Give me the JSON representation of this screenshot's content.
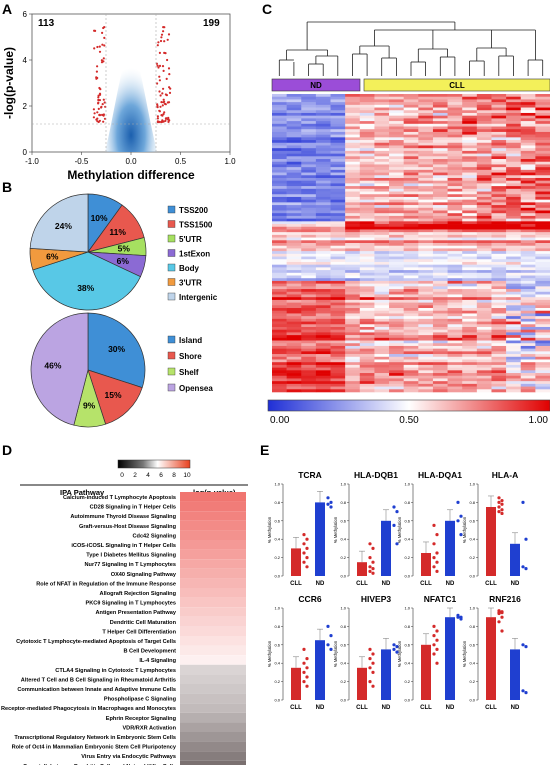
{
  "panel_labels": {
    "a": "A",
    "b": "B",
    "c": "C",
    "d": "D",
    "e": "E"
  },
  "colors": {
    "red": "#d42a2a",
    "blue": "#1f3fd0",
    "nd_bar": "#9b4dd8",
    "cll_bar": "#f3f05a",
    "pie_tss200": "#3f8fd6",
    "pie_tss1500": "#e8584e",
    "pie_5utr": "#a6e060",
    "pie_1stexon": "#8b6ad4",
    "pie_body": "#58c8e6",
    "pie_3utr": "#f19a3e",
    "pie_intergenic": "#bfd4ea",
    "pie_island": "#3f8fd6",
    "pie_shore": "#e8584e",
    "pie_shelf": "#b6e36a",
    "pie_opensea": "#bba4e2"
  },
  "chart_data": [
    {
      "panel": "A",
      "type": "scatter",
      "xlabel": "Methylation  difference",
      "ylabel": "-log(p-value)",
      "xlim": [
        -1.0,
        1.0
      ],
      "ylim": [
        0,
        6
      ],
      "xticks": [
        "-1.0",
        "-0.5",
        "0.0",
        "0.5",
        "1.0"
      ],
      "yticks": [
        "0",
        "2",
        "4",
        "6"
      ],
      "threshold_x": [
        -0.25,
        0.25
      ],
      "threshold_y": 1.3,
      "annotations": [
        {
          "text": "113",
          "position": "top-left"
        },
        {
          "text": "199",
          "position": "top-right"
        }
      ]
    },
    {
      "panel": "B",
      "type": "pie",
      "slices": [
        {
          "label": "TSS200",
          "value": 10
        },
        {
          "label": "TSS1500",
          "value": 11
        },
        {
          "label": "5'UTR",
          "value": 5
        },
        {
          "label": "1stExon",
          "value": 6
        },
        {
          "label": "Body",
          "value": 38
        },
        {
          "label": "3'UTR",
          "value": 6
        },
        {
          "label": "Intergenic",
          "value": 24
        }
      ],
      "legend": "right"
    },
    {
      "panel": "B",
      "type": "pie",
      "slices": [
        {
          "label": "Island",
          "value": 30
        },
        {
          "label": "Shore",
          "value": 15
        },
        {
          "label": "Shelf",
          "value": 9
        },
        {
          "label": "Opensea",
          "value": 46
        }
      ],
      "legend": "right"
    },
    {
      "panel": "C",
      "type": "heatmap",
      "groups": [
        {
          "name": "ND",
          "n": 5
        },
        {
          "name": "CLL",
          "n": 14
        }
      ],
      "colorbar_ticks": [
        "0.00",
        "0.50",
        "1.00"
      ],
      "colorbar_range": [
        0.0,
        1.0
      ]
    },
    {
      "panel": "D",
      "type": "table",
      "scale_ticks": [
        "0",
        "2",
        "4",
        "6",
        "8",
        "10"
      ],
      "scale_label": "-log(p-value)",
      "headers": [
        "IPA Pathway",
        "-log(p-value)"
      ],
      "rows": [
        {
          "pathway": "Calcium-induced T Lymphocyte Apoptosis",
          "shade": 0.95
        },
        {
          "pathway": "CD28 Signaling in T Helper Cells",
          "shade": 0.9
        },
        {
          "pathway": "Autoimmune Thyroid Disease Signaling",
          "shade": 0.85
        },
        {
          "pathway": "Graft-versus-Host Disease Signaling",
          "shade": 0.8
        },
        {
          "pathway": "Cdc42 Signaling",
          "shade": 0.75
        },
        {
          "pathway": "iCOS-iCOSL Signaling in T Helper Cells",
          "shade": 0.7
        },
        {
          "pathway": "Type I Diabetes Mellitus Signaling",
          "shade": 0.65
        },
        {
          "pathway": "Nur77 Signaling in T Lymphocytes",
          "shade": 0.6
        },
        {
          "pathway": "OX40 Signaling Pathway",
          "shade": 0.55
        },
        {
          "pathway": "Role of NFAT in Regulation of the Immune Response",
          "shade": 0.5
        },
        {
          "pathway": "Allograft Rejection Signaling",
          "shade": 0.45
        },
        {
          "pathway": "PKCθ Signaling in T Lymphocytes",
          "shade": 0.4
        },
        {
          "pathway": "Antigen Presentation Pathway",
          "shade": 0.35
        },
        {
          "pathway": "Dendritic Cell Maturation",
          "shade": 0.3
        },
        {
          "pathway": "T Helper Cell Differentiation",
          "shade": 0.25
        },
        {
          "pathway": "Cytotoxic T Lymphocyte-mediated Apoptosis of Target Cells",
          "shade": 0.2
        },
        {
          "pathway": "B Cell Development",
          "shade": 0.15
        },
        {
          "pathway": "IL-4 Signaling",
          "shade": 0.1
        },
        {
          "pathway": "CTLA4 Signaling in Cytotoxic T Lymphocytes",
          "shade": -0.1
        },
        {
          "pathway": "Altered T Cell and B Cell Signaling in Rheumatoid Arthritis",
          "shade": -0.15
        },
        {
          "pathway": "Communication between Innate and Adaptive Immune Cells",
          "shade": -0.2
        },
        {
          "pathway": "Phospholipase C Signaling",
          "shade": -0.25
        },
        {
          "pathway": "Fcγ Receptor-mediated Phagocytosis in Macrophages and Monocytes",
          "shade": -0.3
        },
        {
          "pathway": "Ephrin Receptor Signaling",
          "shade": -0.4
        },
        {
          "pathway": "VDR/RXR Activation",
          "shade": -0.5
        },
        {
          "pathway": "Transcriptional Regulatory Network in Embryonic Stem Cells",
          "shade": -0.6
        },
        {
          "pathway": "Role of Oct4 in Mammalian Embryonic Stem Cell Pluripotency",
          "shade": -0.7
        },
        {
          "pathway": "Virus Entry via Endocytic Pathways",
          "shade": -0.8
        },
        {
          "pathway": "Crosstalk between Dendritic Cells and Natural Killer Cells",
          "shade": -0.9
        }
      ]
    },
    {
      "panel": "E",
      "type": "bar",
      "categories": [
        "CLL",
        "ND"
      ],
      "ylabel_prefix": "% Methylation",
      "ylim": [
        0.0,
        1.0
      ],
      "yticks": [
        "0.0",
        "0.2",
        "0.4",
        "0.6",
        "0.8",
        "1.0"
      ],
      "subplots": [
        {
          "title": "TCRA",
          "cll": 0.3,
          "nd": 0.8,
          "cll_pts": [
            0.45,
            0.4,
            0.35,
            0.3,
            0.25,
            0.2,
            0.15,
            0.1
          ],
          "nd_pts": [
            0.85,
            0.8,
            0.78,
            0.75
          ]
        },
        {
          "title": "HLA-DQB1",
          "cll": 0.15,
          "nd": 0.6,
          "cll_pts": [
            0.35,
            0.3,
            0.2,
            0.15,
            0.1,
            0.08,
            0.05,
            0.03
          ],
          "nd_pts": [
            0.75,
            0.7,
            0.55,
            0.35
          ]
        },
        {
          "title": "HLA-DQA1",
          "cll": 0.25,
          "nd": 0.6,
          "cll_pts": [
            0.55,
            0.45,
            0.35,
            0.25,
            0.2,
            0.15,
            0.1,
            0.05
          ],
          "nd_pts": [
            0.8,
            0.65,
            0.6,
            0.45
          ]
        },
        {
          "title": "HLA-A",
          "cll": 0.75,
          "nd": 0.35,
          "cll_pts": [
            0.85,
            0.82,
            0.8,
            0.78,
            0.75,
            0.72,
            0.7,
            0.68
          ],
          "nd_pts": [
            0.8,
            0.4,
            0.1,
            0.08
          ]
        },
        {
          "title": "CCR6",
          "cll": 0.35,
          "nd": 0.65,
          "cll_pts": [
            0.55,
            0.45,
            0.4,
            0.35,
            0.3,
            0.25,
            0.2,
            0.15
          ],
          "nd_pts": [
            0.8,
            0.7,
            0.6,
            0.55
          ]
        },
        {
          "title": "HIVEP3",
          "cll": 0.35,
          "nd": 0.55,
          "cll_pts": [
            0.55,
            0.5,
            0.45,
            0.4,
            0.35,
            0.3,
            0.2,
            0.15
          ],
          "nd_pts": [
            0.6,
            0.58,
            0.55,
            0.52
          ]
        },
        {
          "title": "NFATC1",
          "cll": 0.6,
          "nd": 0.9,
          "cll_pts": [
            0.8,
            0.75,
            0.7,
            0.65,
            0.6,
            0.55,
            0.5,
            0.4
          ],
          "nd_pts": [
            0.92,
            0.9,
            0.9,
            0.88
          ]
        },
        {
          "title": "RNF216",
          "cll": 0.9,
          "nd": 0.55,
          "cll_pts": [
            0.97,
            0.96,
            0.95,
            0.95,
            0.94,
            0.9,
            0.85,
            0.75
          ],
          "nd_pts": [
            0.6,
            0.58,
            0.1,
            0.08
          ]
        }
      ]
    }
  ]
}
